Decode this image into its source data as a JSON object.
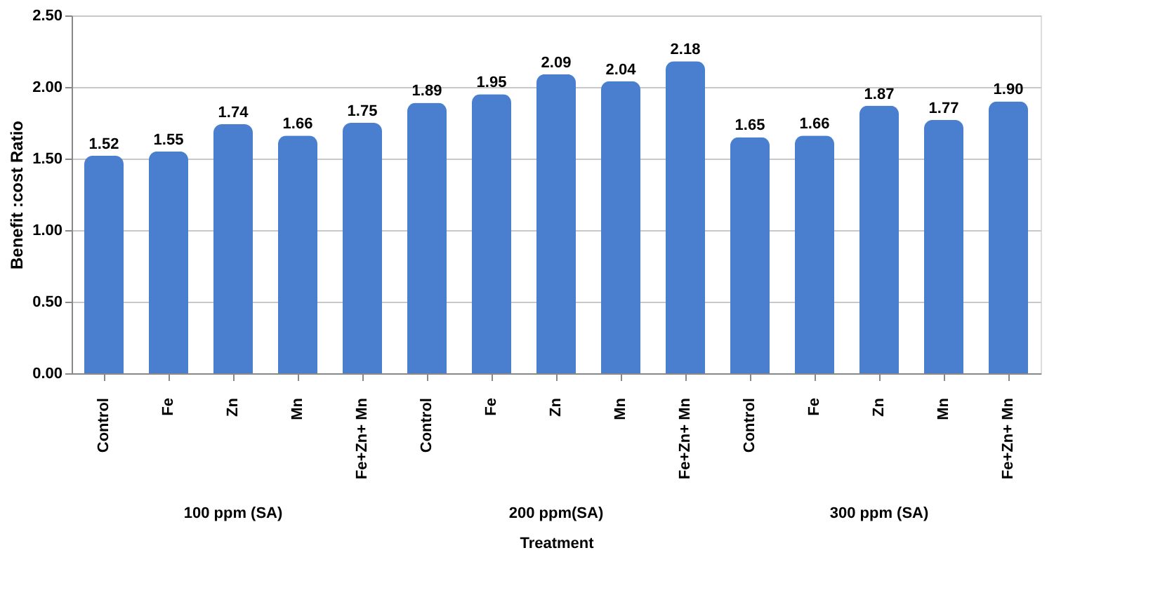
{
  "chart_data": {
    "type": "bar",
    "xlabel": "Treatment",
    "ylabel": "Benefit :cost Ratio",
    "categories": [
      "Control",
      "Fe",
      "Zn",
      "Mn",
      "Fe+Zn+ Mn",
      "Control",
      "Fe",
      "Zn",
      "Mn",
      "Fe+Zn+ Mn",
      "Control",
      "Fe",
      "Zn",
      "Mn",
      "Fe+Zn+ Mn"
    ],
    "values": [
      1.52,
      1.55,
      1.74,
      1.66,
      1.75,
      1.89,
      1.95,
      2.09,
      2.04,
      2.18,
      1.65,
      1.66,
      1.87,
      1.77,
      1.9
    ],
    "value_labels": [
      "1.52",
      "1.55",
      "1.74",
      "1.66",
      "1.75",
      "1.89",
      "1.95",
      "2.09",
      "2.04",
      "2.18",
      "1.65",
      "1.66",
      "1.87",
      "1.77",
      "1.90"
    ],
    "color": "#4a7fd0",
    "ylim": [
      0,
      2.5
    ],
    "yticks": [
      {
        "value": 0,
        "label": "0.00"
      },
      {
        "value": 0.5,
        "label": "0.50"
      },
      {
        "value": 1,
        "label": "1.00"
      },
      {
        "value": 1.5,
        "label": "1.50"
      },
      {
        "value": 2,
        "label": "2.00"
      },
      {
        "value": 2.5,
        "label": "2.50"
      }
    ],
    "grid": "y",
    "annotations": [
      "100 ppm (SA)",
      "200 ppm(SA)",
      "300 ppm (SA)"
    ]
  }
}
